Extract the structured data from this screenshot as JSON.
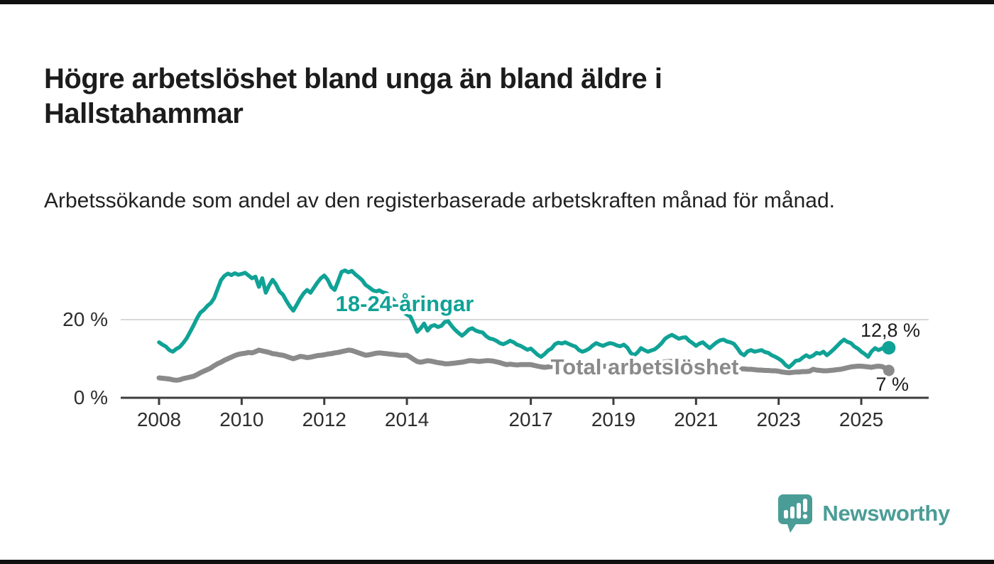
{
  "header": {
    "title": "Högre arbetslöshet bland unga än bland äldre i Hallstahammar",
    "subtitle": "Arbetssökande som andel av den registerbaserade arbetskraften månad för månad."
  },
  "footer": {
    "brand": "Newsworthy",
    "brand_color": "#4a9d96",
    "logo_icon": "newsworthy-speech-bubble-barchart-icon"
  },
  "chart_data": {
    "type": "line",
    "frequency": "monthly",
    "x_start_year": 2008,
    "x_end": "2025-09",
    "x_ticks": [
      2008,
      2010,
      2012,
      2014,
      2017,
      2019,
      2021,
      2023,
      2025
    ],
    "y_ticks": [
      {
        "value": 0,
        "label": "0 %"
      },
      {
        "value": 20,
        "label": "20 %"
      }
    ],
    "ylim": [
      0,
      34
    ],
    "grid": "single-horizontal-gridline-at-20",
    "legend_position": "inline-labels-on-lines",
    "axis_color": "#3d3d3d",
    "grid_color": "#d8d8d8",
    "tick_label_color": "#2e2e2e",
    "end_label_color": "#1c1c1c",
    "series": [
      {
        "name": "Total arbetslöshet",
        "color": "#8a8a8a",
        "end_value": 7.0,
        "end_label": "7 %",
        "values": [
          5.1,
          5.0,
          4.9,
          4.8,
          4.6,
          4.5,
          4.6,
          4.9,
          5.1,
          5.3,
          5.5,
          5.9,
          6.4,
          6.8,
          7.2,
          7.6,
          8.2,
          8.7,
          9.1,
          9.6,
          10.0,
          10.4,
          10.8,
          11.1,
          11.3,
          11.4,
          11.6,
          11.5,
          11.8,
          12.2,
          12.0,
          11.8,
          11.6,
          11.3,
          11.2,
          11.0,
          10.9,
          10.6,
          10.3,
          10.0,
          10.3,
          10.6,
          10.5,
          10.3,
          10.4,
          10.6,
          10.8,
          10.9,
          11.0,
          11.2,
          11.3,
          11.5,
          11.6,
          11.8,
          12.0,
          12.2,
          12.1,
          11.8,
          11.5,
          11.2,
          10.9,
          11.0,
          11.2,
          11.4,
          11.5,
          11.4,
          11.3,
          11.2,
          11.1,
          11.0,
          10.9,
          10.9,
          10.9,
          10.4,
          9.8,
          9.3,
          9.1,
          9.3,
          9.5,
          9.4,
          9.2,
          9.0,
          8.9,
          8.7,
          8.7,
          8.8,
          8.9,
          9.0,
          9.1,
          9.3,
          9.5,
          9.5,
          9.4,
          9.3,
          9.4,
          9.5,
          9.5,
          9.4,
          9.2,
          9.0,
          8.7,
          8.5,
          8.6,
          8.5,
          8.4,
          8.5,
          8.5,
          8.5,
          8.5,
          8.3,
          8.1,
          7.9,
          7.8,
          7.9,
          8.0,
          8.1,
          8.2,
          8.2,
          8.3,
          8.3,
          8.3,
          8.2,
          8.1,
          8.0,
          7.9,
          7.9,
          8.0,
          8.0,
          8.1,
          8.1,
          8.0,
          8.0,
          8.0,
          7.9,
          7.9,
          7.8,
          7.8,
          7.9,
          8.0,
          8.1,
          8.2,
          8.3,
          8.4,
          8.5,
          8.6,
          8.8,
          9.0,
          9.2,
          9.3,
          9.3,
          9.2,
          9.1,
          9.0,
          8.8,
          8.6,
          8.4,
          8.3,
          8.2,
          8.1,
          8.0,
          7.9,
          7.8,
          7.8,
          7.7,
          7.7,
          7.6,
          7.6,
          7.5,
          7.5,
          7.4,
          7.4,
          7.3,
          7.3,
          7.2,
          7.1,
          7.1,
          7.0,
          7.0,
          6.9,
          6.9,
          6.8,
          6.6,
          6.5,
          6.4,
          6.5,
          6.6,
          6.6,
          6.7,
          6.7,
          6.8,
          7.3,
          7.1,
          7.0,
          6.9,
          6.9,
          7.0,
          7.1,
          7.2,
          7.3,
          7.5,
          7.7,
          7.9,
          8.0,
          8.1,
          8.1,
          8.0,
          7.9,
          7.8,
          8.0,
          8.1,
          8.0,
          7.6,
          7.0
        ]
      },
      {
        "name": "18-24-åringar",
        "color": "#10a296",
        "end_value": 12.8,
        "end_label": "12,8 %",
        "values": [
          14.2,
          13.6,
          13.1,
          12.2,
          11.8,
          12.5,
          13.0,
          14.0,
          15.2,
          16.8,
          18.5,
          20.3,
          21.8,
          22.5,
          23.5,
          24.2,
          25.5,
          27.8,
          30.1,
          31.2,
          31.8,
          31.4,
          31.9,
          31.5,
          31.7,
          32.0,
          31.3,
          30.6,
          31.0,
          28.4,
          30.6,
          26.9,
          28.8,
          30.2,
          29.0,
          27.2,
          26.4,
          24.8,
          23.4,
          22.3,
          23.8,
          25.4,
          26.7,
          27.6,
          26.9,
          28.2,
          29.5,
          30.6,
          31.3,
          30.2,
          28.4,
          27.6,
          29.8,
          32.2,
          32.6,
          32.1,
          32.5,
          31.6,
          30.9,
          30.1,
          28.9,
          28.3,
          27.6,
          27.2,
          27.5,
          27.0,
          26.8,
          26.2,
          25.1,
          24.0,
          22.9,
          21.9,
          21.3,
          20.8,
          18.9,
          16.9,
          17.8,
          19.0,
          17.2,
          18.3,
          18.6,
          18.1,
          18.4,
          19.4,
          19.6,
          18.4,
          17.4,
          16.6,
          15.9,
          16.6,
          17.5,
          17.8,
          17.2,
          16.9,
          16.7,
          15.8,
          15.2,
          15.0,
          14.6,
          14.0,
          13.7,
          14.1,
          14.6,
          14.2,
          13.6,
          13.3,
          12.8,
          12.3,
          12.6,
          11.8,
          11.0,
          10.5,
          11.2,
          12.1,
          12.6,
          13.7,
          14.1,
          13.9,
          14.2,
          13.8,
          13.4,
          13.1,
          12.2,
          11.8,
          12.1,
          12.6,
          13.4,
          14.0,
          13.6,
          13.3,
          13.7,
          14.0,
          13.8,
          13.4,
          13.2,
          13.6,
          12.9,
          11.5,
          10.9,
          11.6,
          12.7,
          12.2,
          11.8,
          12.1,
          12.4,
          13.1,
          14.0,
          15.1,
          15.7,
          16.1,
          15.6,
          15.1,
          15.4,
          15.5,
          14.6,
          14.0,
          13.3,
          13.9,
          14.2,
          13.4,
          12.7,
          13.5,
          14.2,
          14.7,
          14.9,
          14.4,
          14.2,
          13.8,
          12.7,
          11.4,
          10.9,
          11.9,
          12.2,
          11.8,
          12.0,
          12.2,
          11.7,
          11.5,
          10.9,
          10.5,
          10.0,
          9.4,
          8.4,
          7.8,
          8.6,
          9.5,
          9.6,
          10.3,
          10.9,
          10.4,
          10.8,
          11.5,
          11.3,
          11.8,
          10.9,
          11.6,
          12.4,
          13.3,
          14.2,
          14.9,
          14.3,
          14.0,
          13.1,
          12.6,
          11.8,
          11.2,
          10.5,
          11.9,
          12.7,
          12.2,
          12.6,
          13.1,
          12.8
        ]
      }
    ]
  }
}
